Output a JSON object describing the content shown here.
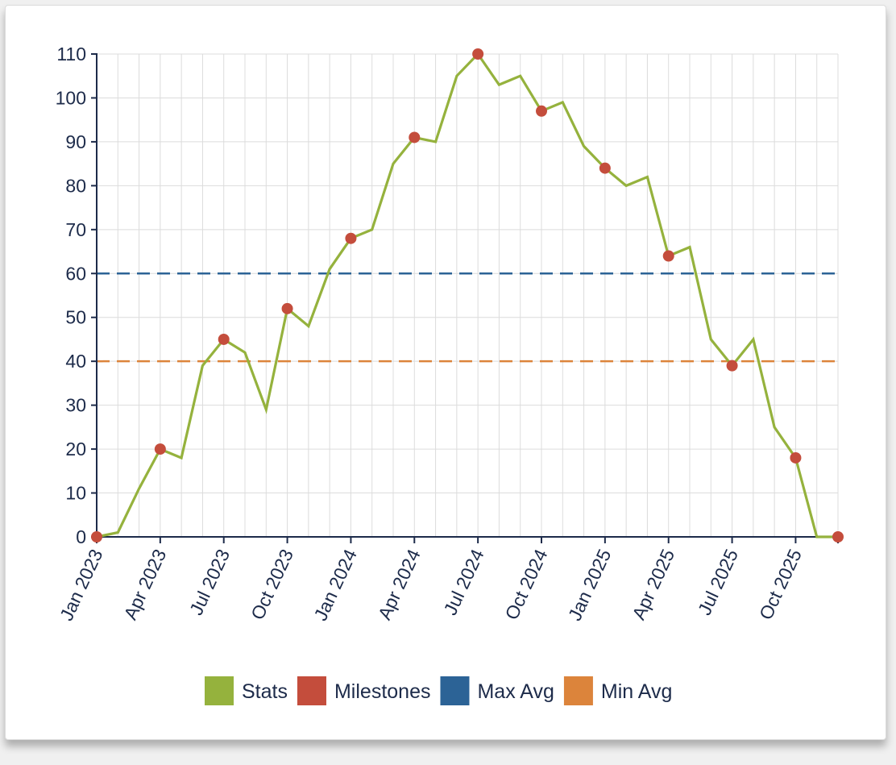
{
  "chart_data": {
    "type": "line",
    "ylim": [
      0,
      110
    ],
    "yticks": [
      0,
      10,
      20,
      30,
      40,
      50,
      60,
      70,
      80,
      90,
      100,
      110
    ],
    "xlim": [
      "2023-01",
      "2025-12"
    ],
    "x_tick_labels": [
      "Jan 2023",
      "Apr 2023",
      "Jul 2023",
      "Oct 2023",
      "Jan 2024",
      "Apr 2024",
      "Jul 2024",
      "Oct 2024",
      "Jan 2025",
      "Apr 2025",
      "Jul 2025",
      "Oct 2025"
    ],
    "grid": true,
    "legend_position": "bottom",
    "series": [
      {
        "name": "Stats",
        "kind": "line",
        "color": "#95b23d",
        "x": [
          "2023-01",
          "2023-02",
          "2023-03",
          "2023-04",
          "2023-05",
          "2023-06",
          "2023-07",
          "2023-08",
          "2023-09",
          "2023-10",
          "2023-11",
          "2023-12",
          "2024-01",
          "2024-02",
          "2024-03",
          "2024-04",
          "2024-05",
          "2024-06",
          "2024-07",
          "2024-08",
          "2024-09",
          "2024-10",
          "2024-11",
          "2024-12",
          "2025-01",
          "2025-02",
          "2025-03",
          "2025-04",
          "2025-05",
          "2025-06",
          "2025-07",
          "2025-08",
          "2025-09",
          "2025-10",
          "2025-11",
          "2025-12"
        ],
        "values": [
          0,
          1,
          11,
          20,
          18,
          39,
          45,
          42,
          29,
          52,
          48,
          61,
          68,
          70,
          85,
          91,
          90,
          105,
          110,
          103,
          105,
          97,
          99,
          89,
          84,
          80,
          82,
          64,
          66,
          45,
          39,
          45,
          25,
          18,
          0,
          0
        ]
      },
      {
        "name": "Milestones",
        "kind": "points",
        "color": "#c44d3c",
        "x": [
          "2023-01",
          "2023-04",
          "2023-07",
          "2023-10",
          "2024-01",
          "2024-04",
          "2024-07",
          "2024-10",
          "2025-01",
          "2025-04",
          "2025-07",
          "2025-10",
          "2025-12"
        ],
        "values": [
          0,
          20,
          45,
          52,
          68,
          91,
          110,
          97,
          84,
          64,
          39,
          18,
          0
        ]
      },
      {
        "name": "Max Avg",
        "kind": "reference",
        "color": "#2c6396",
        "value": 60
      },
      {
        "name": "Min Avg",
        "kind": "reference",
        "color": "#dc843b",
        "value": 40
      }
    ]
  }
}
